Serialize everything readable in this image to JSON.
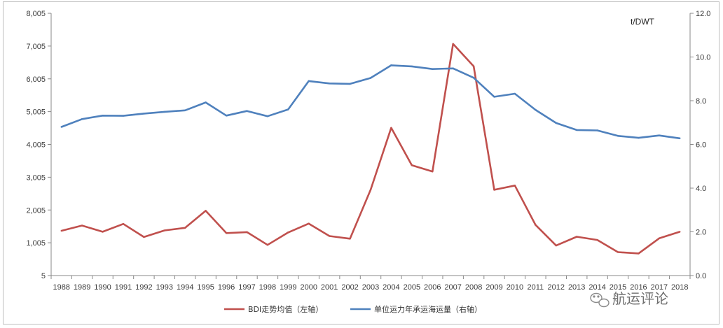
{
  "chart_data": {
    "type": "line",
    "colors": {
      "bdi": "#c0504d",
      "ratio": "#4f81bd",
      "axis": "#898989"
    },
    "x": [
      "1988",
      "1989",
      "1990",
      "1991",
      "1992",
      "1993",
      "1994",
      "1995",
      "1996",
      "1997",
      "1998",
      "1999",
      "2000",
      "2001",
      "2002",
      "2003",
      "2004",
      "2005",
      "2006",
      "2007",
      "2008",
      "2009",
      "2010",
      "2011",
      "2012",
      "2013",
      "2014",
      "2015",
      "2016",
      "2017",
      "2018"
    ],
    "left_axis": {
      "min": 5,
      "max": 8005,
      "step": 1000,
      "ticks": [
        "5",
        "1,005",
        "2,005",
        "3,005",
        "4,005",
        "5,005",
        "6,005",
        "7,005",
        "8,005"
      ]
    },
    "right_axis": {
      "min": 0,
      "max": 12,
      "step": 2,
      "unit": "t/DWT",
      "ticks": [
        "0.0",
        "2.0",
        "4.0",
        "6.0",
        "8.0",
        "10.0",
        "12.0"
      ]
    },
    "series": [
      {
        "name": "BDI走势均值（左轴）",
        "axis": "left",
        "values": [
          1370,
          1530,
          1340,
          1580,
          1180,
          1380,
          1460,
          1980,
          1300,
          1330,
          940,
          1320,
          1590,
          1210,
          1130,
          2620,
          4510,
          3370,
          3180,
          7070,
          6390,
          2620,
          2750,
          1550,
          920,
          1190,
          1090,
          720,
          680,
          1140,
          1340
        ]
      },
      {
        "name": "单位运力年承运海运量（右轴）",
        "axis": "right",
        "values": [
          6.8,
          7.16,
          7.32,
          7.31,
          7.41,
          7.49,
          7.56,
          7.92,
          7.32,
          7.53,
          7.29,
          7.6,
          8.9,
          8.79,
          8.77,
          9.04,
          9.62,
          9.57,
          9.45,
          9.48,
          9.05,
          8.18,
          8.32,
          7.58,
          6.98,
          6.66,
          6.64,
          6.39,
          6.3,
          6.41,
          6.28
        ]
      }
    ]
  },
  "watermark": {
    "text": "航运评论",
    "icon": "wechat-icon"
  }
}
